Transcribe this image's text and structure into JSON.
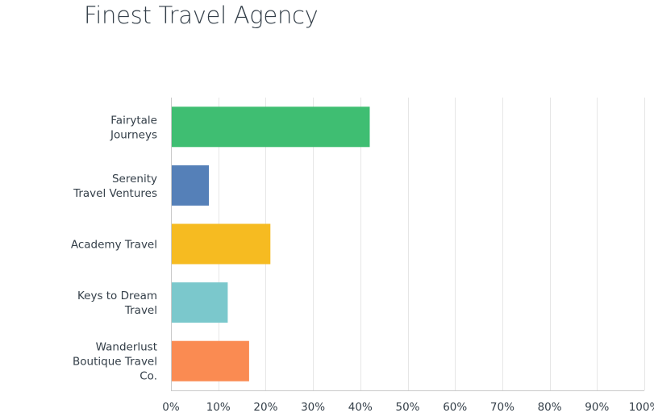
{
  "chart_data": {
    "type": "bar",
    "orientation": "horizontal",
    "title": "Finest Travel Agency",
    "categories": [
      [
        "Fairytale",
        "Journeys"
      ],
      [
        "Serenity",
        "Travel Ventures"
      ],
      [
        "Academy Travel"
      ],
      [
        "Keys to Dream",
        "Travel"
      ],
      [
        "Wanderlust",
        "Boutique Travel",
        "Co."
      ]
    ],
    "values": [
      42,
      8,
      21,
      12,
      16.5
    ],
    "colors": [
      "#3fbe72",
      "#5580b8",
      "#f6bb21",
      "#7bc8cc",
      "#fa8b52"
    ],
    "xlim": [
      0,
      100
    ],
    "xticks": [
      "0%",
      "10%",
      "20%",
      "30%",
      "40%",
      "50%",
      "60%",
      "70%",
      "80%",
      "90%",
      "100%"
    ],
    "grid": true
  }
}
